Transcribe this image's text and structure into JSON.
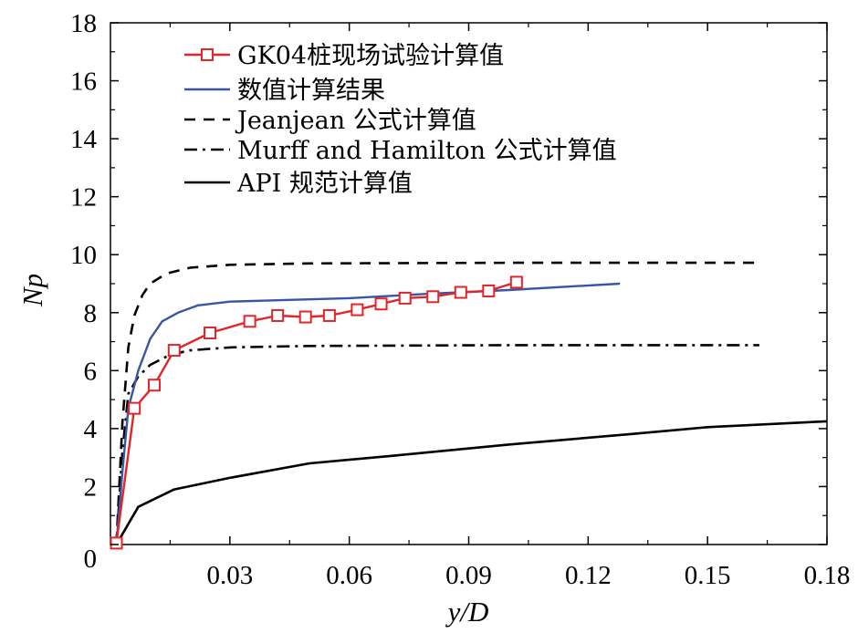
{
  "chart_data": {
    "type": "line",
    "xlabel": "y/D",
    "ylabel": "Np",
    "xlim": [
      0,
      0.18
    ],
    "ylim": [
      0,
      18
    ],
    "x_ticks": [
      "0.03",
      "0.06",
      "0.09",
      "0.12",
      "0.15",
      "0.18"
    ],
    "y_ticks": [
      "0",
      "2",
      "4",
      "6",
      "8",
      "10",
      "12",
      "14",
      "16",
      "18"
    ],
    "grid": false,
    "legend_position": "top-left",
    "series": [
      {
        "name": "GK04桩现场试验计算值",
        "color": "#e0262a",
        "style": "solid-square-markers",
        "points": [
          [
            0.0015,
            0.05
          ],
          [
            0.006,
            4.7
          ],
          [
            0.011,
            5.5
          ],
          [
            0.016,
            6.7
          ],
          [
            0.025,
            7.3
          ],
          [
            0.035,
            7.7
          ],
          [
            0.042,
            7.9
          ],
          [
            0.049,
            7.85
          ],
          [
            0.055,
            7.9
          ],
          [
            0.062,
            8.1
          ],
          [
            0.068,
            8.3
          ],
          [
            0.074,
            8.5
          ],
          [
            0.081,
            8.55
          ],
          [
            0.088,
            8.7
          ],
          [
            0.095,
            8.75
          ],
          [
            0.102,
            9.05
          ]
        ]
      },
      {
        "name": "数值计算结果",
        "color": "#3a55a4",
        "style": "solid",
        "points": [
          [
            0.0015,
            0
          ],
          [
            0.003,
            2.5
          ],
          [
            0.0045,
            4.7
          ],
          [
            0.007,
            6.0
          ],
          [
            0.01,
            7.1
          ],
          [
            0.013,
            7.7
          ],
          [
            0.017,
            8.0
          ],
          [
            0.022,
            8.25
          ],
          [
            0.03,
            8.38
          ],
          [
            0.04,
            8.42
          ],
          [
            0.06,
            8.5
          ],
          [
            0.08,
            8.65
          ],
          [
            0.1,
            8.78
          ],
          [
            0.128,
            9.0
          ]
        ]
      },
      {
        "name": "Jeanjean 公式计算值",
        "color": "#000000",
        "style": "dashed",
        "points": [
          [
            0.0015,
            0
          ],
          [
            0.003,
            4.2
          ],
          [
            0.0045,
            6.8
          ],
          [
            0.006,
            7.9
          ],
          [
            0.008,
            8.6
          ],
          [
            0.01,
            9.0
          ],
          [
            0.014,
            9.35
          ],
          [
            0.02,
            9.55
          ],
          [
            0.03,
            9.65
          ],
          [
            0.05,
            9.7
          ],
          [
            0.1,
            9.72
          ],
          [
            0.163,
            9.72
          ]
        ]
      },
      {
        "name": "Murff and Hamilton 公式计算值",
        "color": "#000000",
        "style": "dash-dot",
        "points": [
          [
            0.0015,
            0
          ],
          [
            0.003,
            3.2
          ],
          [
            0.0045,
            5.2
          ],
          [
            0.007,
            5.8
          ],
          [
            0.01,
            6.2
          ],
          [
            0.015,
            6.55
          ],
          [
            0.02,
            6.7
          ],
          [
            0.03,
            6.8
          ],
          [
            0.05,
            6.85
          ],
          [
            0.1,
            6.88
          ],
          [
            0.163,
            6.88
          ]
        ]
      },
      {
        "name": "API 规范计算值",
        "color": "#000000",
        "style": "solid",
        "points": [
          [
            0.0015,
            0
          ],
          [
            0.007,
            1.3
          ],
          [
            0.016,
            1.9
          ],
          [
            0.03,
            2.3
          ],
          [
            0.05,
            2.8
          ],
          [
            0.07,
            3.05
          ],
          [
            0.1,
            3.45
          ],
          [
            0.13,
            3.8
          ],
          [
            0.15,
            4.05
          ],
          [
            0.18,
            4.25
          ]
        ]
      }
    ]
  }
}
